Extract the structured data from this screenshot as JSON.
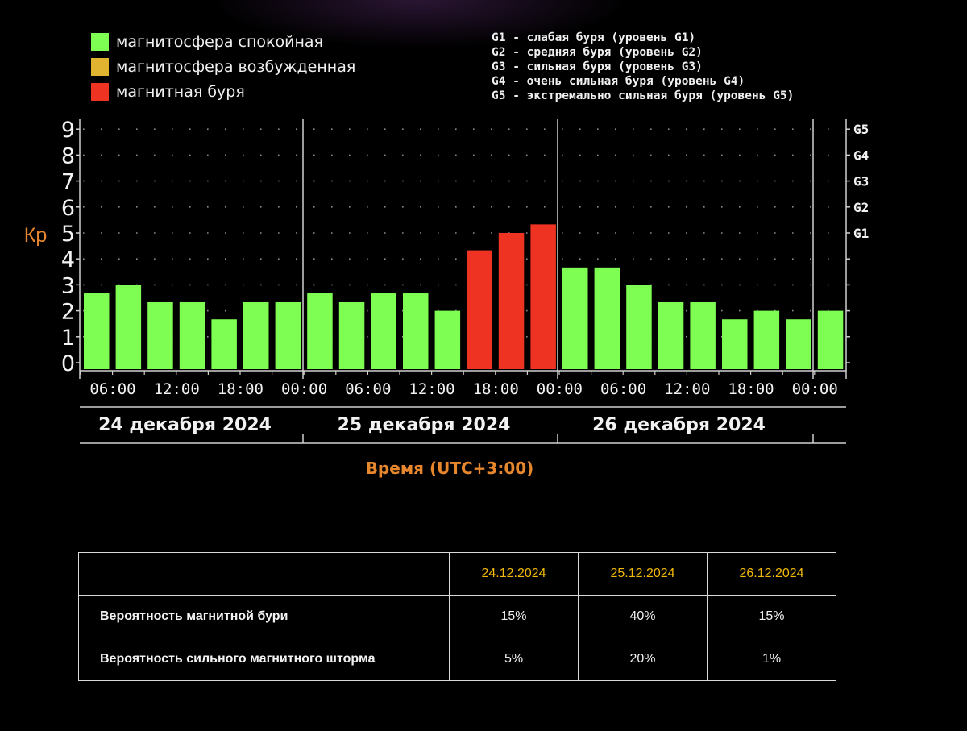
{
  "legend": [
    {
      "label": "магнитосфера спокойная",
      "color": "#7efd52"
    },
    {
      "label": "магнитосфера возбужденная",
      "color": "#e0b431"
    },
    {
      "label": "магнитная буря",
      "color": "#ef3322"
    }
  ],
  "g_levels": [
    "G1 - слабая буря (уровень G1)",
    "G2 - средняя буря (уровень G2)",
    "G3 - сильная буря (уровень G3)",
    "G4 - очень сильная буря (уровень G4)",
    "G5 - экстремально сильная буря (уровень G5)"
  ],
  "chart_data": {
    "type": "bar",
    "ylabel": "Кр",
    "xlabel": "Время (UTC+3:00)",
    "ylim": [
      0,
      9
    ],
    "yticks": [
      "0",
      "1",
      "2",
      "3",
      "4",
      "5",
      "6",
      "7",
      "8",
      "9"
    ],
    "right_ticks": [
      {
        "value": 5,
        "label": "G1"
      },
      {
        "value": 6,
        "label": "G2"
      },
      {
        "value": 7,
        "label": "G3"
      },
      {
        "value": 8,
        "label": "G4"
      },
      {
        "value": 9,
        "label": "G5"
      }
    ],
    "xticks": [
      "06:00",
      "12:00",
      "18:00",
      "00:00",
      "06:00",
      "12:00",
      "18:00",
      "00:00",
      "06:00",
      "12:00",
      "18:00",
      "00:00"
    ],
    "days": [
      "24 декабря 2024",
      "25 декабря 2024",
      "26 декабря 2024"
    ],
    "values": [
      2.67,
      3.0,
      2.33,
      2.33,
      1.67,
      2.33,
      2.33,
      2.67,
      2.33,
      2.67,
      2.67,
      2.0,
      4.33,
      5.0,
      5.33,
      3.67,
      3.67,
      3.0,
      2.33,
      2.33,
      1.67,
      2.0,
      1.67,
      2.0
    ],
    "bar_colors": [
      "green",
      "green",
      "green",
      "green",
      "green",
      "green",
      "green",
      "green",
      "green",
      "green",
      "green",
      "green",
      "red",
      "red",
      "red",
      "green",
      "green",
      "green",
      "green",
      "green",
      "green",
      "green",
      "green",
      "green"
    ],
    "colors": {
      "green": "#7efd52",
      "red": "#ef3322"
    }
  },
  "forecast": {
    "dates": [
      "24.12.2024",
      "25.12.2024",
      "26.12.2024"
    ],
    "rows": [
      {
        "label": "Вероятность магнитной бури",
        "values": [
          "15%",
          "40%",
          "15%"
        ]
      },
      {
        "label": "Вероятность сильного магнитного шторма",
        "values": [
          "5%",
          "20%",
          "1%"
        ]
      }
    ]
  }
}
